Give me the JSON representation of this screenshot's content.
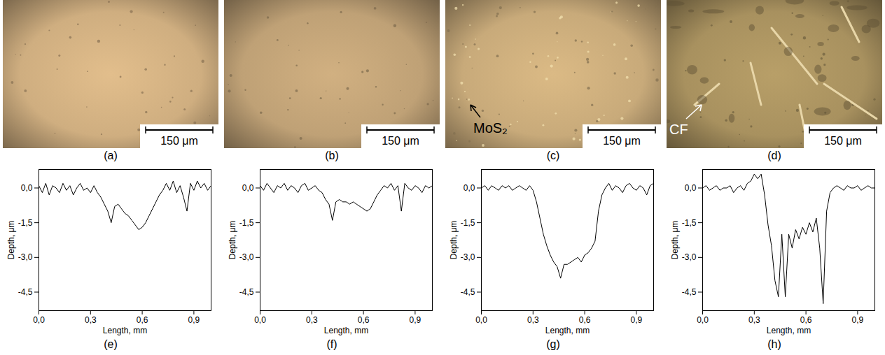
{
  "chart_data": [
    {
      "type": "line",
      "panel": "(e)",
      "x_label": "Length, mm",
      "y_label": "Depth, μm",
      "color": "#000000",
      "grid": false,
      "x": [
        0,
        0.02,
        0.04,
        0.06,
        0.08,
        0.1,
        0.12,
        0.14,
        0.16,
        0.18,
        0.2,
        0.22,
        0.24,
        0.26,
        0.28,
        0.3,
        0.32,
        0.34,
        0.36,
        0.38,
        0.4,
        0.42,
        0.44,
        0.46,
        0.48,
        0.5,
        0.52,
        0.54,
        0.56,
        0.58,
        0.6,
        0.62,
        0.64,
        0.66,
        0.68,
        0.7,
        0.72,
        0.74,
        0.76,
        0.78,
        0.8,
        0.82,
        0.84,
        0.86,
        0.88,
        0.9,
        0.92,
        0.94,
        0.96,
        0.98,
        1.0
      ],
      "values": [
        0.1,
        -0.2,
        0.2,
        -0.3,
        0.1,
        0.0,
        -0.2,
        0.2,
        -0.1,
        0.1,
        -0.3,
        0.0,
        0.2,
        -0.1,
        0.0,
        -0.2,
        0.1,
        -0.2,
        -0.4,
        -0.7,
        -1.0,
        -1.5,
        -0.8,
        -0.7,
        -0.9,
        -1.1,
        -1.2,
        -1.4,
        -1.6,
        -1.8,
        -1.7,
        -1.5,
        -1.2,
        -0.9,
        -0.6,
        -0.3,
        -0.1,
        0.2,
        -0.1,
        0.3,
        -0.2,
        0.1,
        -0.4,
        -1.0,
        0.2,
        -0.1,
        0.3,
        0.0,
        0.2,
        -0.1,
        0.1
      ],
      "xlim": [
        0,
        1.0
      ],
      "ylim": [
        -5.3,
        0.8
      ],
      "xticks": [
        {
          "value": 0,
          "label": "0,0"
        },
        {
          "value": 0.3,
          "label": "0,3"
        },
        {
          "value": 0.6,
          "label": "0,6"
        },
        {
          "value": 0.9,
          "label": "0,9"
        }
      ],
      "yticks": [
        {
          "value": 0,
          "label": "0,0"
        },
        {
          "value": -1.5,
          "label": "-1,5"
        },
        {
          "value": -3,
          "label": "-3,0"
        },
        {
          "value": -4.5,
          "label": "-4,5"
        }
      ]
    },
    {
      "type": "line",
      "panel": "(f)",
      "x_label": "Length, mm",
      "y_label": "Depth, μm",
      "color": "#000000",
      "grid": false,
      "x": [
        0,
        0.02,
        0.04,
        0.06,
        0.08,
        0.1,
        0.12,
        0.14,
        0.16,
        0.18,
        0.2,
        0.22,
        0.24,
        0.26,
        0.28,
        0.3,
        0.32,
        0.34,
        0.36,
        0.38,
        0.4,
        0.42,
        0.44,
        0.46,
        0.48,
        0.5,
        0.52,
        0.54,
        0.56,
        0.58,
        0.6,
        0.62,
        0.64,
        0.66,
        0.68,
        0.7,
        0.72,
        0.74,
        0.76,
        0.78,
        0.8,
        0.82,
        0.84,
        0.86,
        0.88,
        0.9,
        0.92,
        0.94,
        0.96,
        0.98,
        1.0
      ],
      "values": [
        0.1,
        -0.1,
        0.2,
        0.0,
        -0.2,
        0.1,
        0.0,
        0.2,
        -0.1,
        0.1,
        0.0,
        -0.2,
        0.1,
        0.2,
        -0.1,
        0.0,
        0.1,
        -0.1,
        -0.2,
        -0.5,
        -0.7,
        -1.4,
        -0.6,
        -0.5,
        -0.6,
        -0.6,
        -0.7,
        -0.6,
        -0.7,
        -0.8,
        -0.9,
        -1.0,
        -0.9,
        -0.6,
        -0.3,
        -0.1,
        0.1,
        0.0,
        0.2,
        -0.1,
        0.1,
        -1.0,
        0.2,
        0.0,
        -0.1,
        0.1,
        0.0,
        -0.2,
        0.1,
        0.0,
        0.1
      ],
      "xlim": [
        0,
        1.0
      ],
      "ylim": [
        -5.3,
        0.8
      ],
      "xticks": [
        {
          "value": 0,
          "label": "0,0"
        },
        {
          "value": 0.3,
          "label": "0,3"
        },
        {
          "value": 0.6,
          "label": "0,6"
        },
        {
          "value": 0.9,
          "label": "0,9"
        }
      ],
      "yticks": [
        {
          "value": 0,
          "label": "0,0"
        },
        {
          "value": -1.5,
          "label": "-1,5"
        },
        {
          "value": -3,
          "label": "-3,0"
        },
        {
          "value": -4.5,
          "label": "-4,5"
        }
      ]
    },
    {
      "type": "line",
      "panel": "(g)",
      "x_label": "Length, mm",
      "y_label": "Depth, μm",
      "color": "#000000",
      "grid": false,
      "x": [
        0,
        0.02,
        0.04,
        0.06,
        0.08,
        0.1,
        0.12,
        0.14,
        0.16,
        0.18,
        0.2,
        0.22,
        0.24,
        0.26,
        0.28,
        0.3,
        0.32,
        0.34,
        0.36,
        0.38,
        0.4,
        0.42,
        0.44,
        0.46,
        0.48,
        0.5,
        0.52,
        0.54,
        0.56,
        0.58,
        0.6,
        0.62,
        0.64,
        0.66,
        0.68,
        0.7,
        0.72,
        0.74,
        0.76,
        0.78,
        0.8,
        0.82,
        0.84,
        0.86,
        0.88,
        0.9,
        0.92,
        0.94,
        0.96,
        0.98,
        1.0
      ],
      "values": [
        0.0,
        0.1,
        -0.1,
        0.1,
        0.0,
        -0.1,
        0.1,
        0.0,
        0.1,
        -0.1,
        0.0,
        0.1,
        0.0,
        -0.1,
        0.1,
        -0.1,
        -0.6,
        -1.3,
        -2.0,
        -2.5,
        -2.9,
        -3.2,
        -3.4,
        -3.9,
        -3.3,
        -3.3,
        -3.2,
        -3.1,
        -3.0,
        -3.2,
        -2.9,
        -2.8,
        -2.6,
        -2.3,
        -1.0,
        -0.3,
        0.0,
        0.2,
        -0.1,
        0.1,
        0.0,
        -0.2,
        0.1,
        0.2,
        0.0,
        -0.1,
        0.1,
        0.0,
        -0.3,
        0.1,
        0.2
      ],
      "xlim": [
        0,
        1.0
      ],
      "ylim": [
        -5.3,
        0.8
      ],
      "xticks": [
        {
          "value": 0,
          "label": "0,0"
        },
        {
          "value": 0.3,
          "label": "0,3"
        },
        {
          "value": 0.6,
          "label": "0,6"
        },
        {
          "value": 0.9,
          "label": "0,9"
        }
      ],
      "yticks": [
        {
          "value": 0,
          "label": "0,0"
        },
        {
          "value": -1.5,
          "label": "-1,5"
        },
        {
          "value": -3,
          "label": "-3,0"
        },
        {
          "value": -4.5,
          "label": "-4,5"
        }
      ]
    },
    {
      "type": "line",
      "panel": "(h)",
      "x_label": "Length, mm",
      "y_label": "Depth, μm",
      "color": "#000000",
      "grid": false,
      "x": [
        0,
        0.02,
        0.04,
        0.06,
        0.08,
        0.1,
        0.12,
        0.14,
        0.16,
        0.18,
        0.2,
        0.22,
        0.24,
        0.26,
        0.28,
        0.3,
        0.32,
        0.34,
        0.36,
        0.38,
        0.4,
        0.42,
        0.44,
        0.46,
        0.48,
        0.5,
        0.52,
        0.54,
        0.56,
        0.58,
        0.6,
        0.62,
        0.64,
        0.66,
        0.68,
        0.7,
        0.72,
        0.74,
        0.76,
        0.78,
        0.8,
        0.82,
        0.84,
        0.86,
        0.88,
        0.9,
        0.92,
        0.94,
        0.96,
        0.98,
        1.0
      ],
      "values": [
        0.0,
        0.1,
        -0.1,
        0.0,
        0.1,
        -0.1,
        0.0,
        0.0,
        0.1,
        -0.2,
        0.0,
        0.1,
        -0.1,
        0.2,
        0.3,
        0.6,
        0.4,
        0.6,
        -0.3,
        -1.6,
        -2.5,
        -4.0,
        -4.7,
        -2.0,
        -4.7,
        -2.0,
        -2.6,
        -1.8,
        -2.2,
        -1.7,
        -2.0,
        -1.5,
        -1.9,
        -1.3,
        -2.6,
        -5.0,
        -1.0,
        -0.2,
        0.0,
        0.1,
        0.0,
        -0.1,
        0.1,
        0.0,
        0.0,
        0.1,
        -0.1,
        0.0,
        0.1,
        0.0,
        0.0
      ],
      "xlim": [
        0,
        1.0
      ],
      "ylim": [
        -5.3,
        0.8
      ],
      "xticks": [
        {
          "value": 0,
          "label": "0,0"
        },
        {
          "value": 0.3,
          "label": "0,3"
        },
        {
          "value": 0.6,
          "label": "0,6"
        },
        {
          "value": 0.9,
          "label": "0,9"
        }
      ],
      "yticks": [
        {
          "value": 0,
          "label": "0,0"
        },
        {
          "value": -1.5,
          "label": "-1,5"
        },
        {
          "value": -3,
          "label": "-3,0"
        },
        {
          "value": -4.5,
          "label": "-4,5"
        }
      ]
    }
  ],
  "images": [
    {
      "panel": "(a)",
      "scale_bar": "150 μm",
      "color": "#cfae80"
    },
    {
      "panel": "(b)",
      "scale_bar": "150 μm",
      "color": "#bfa176"
    },
    {
      "panel": "(c)",
      "scale_bar": "150 μm",
      "color": "#c8aa7a",
      "annotation": {
        "text": "MoS₂",
        "color": "#000000"
      }
    },
    {
      "panel": "(d)",
      "scale_bar": "150 μm",
      "color": "#a8915f",
      "annotation": {
        "text": "CF",
        "color": "#ffffff"
      }
    }
  ]
}
